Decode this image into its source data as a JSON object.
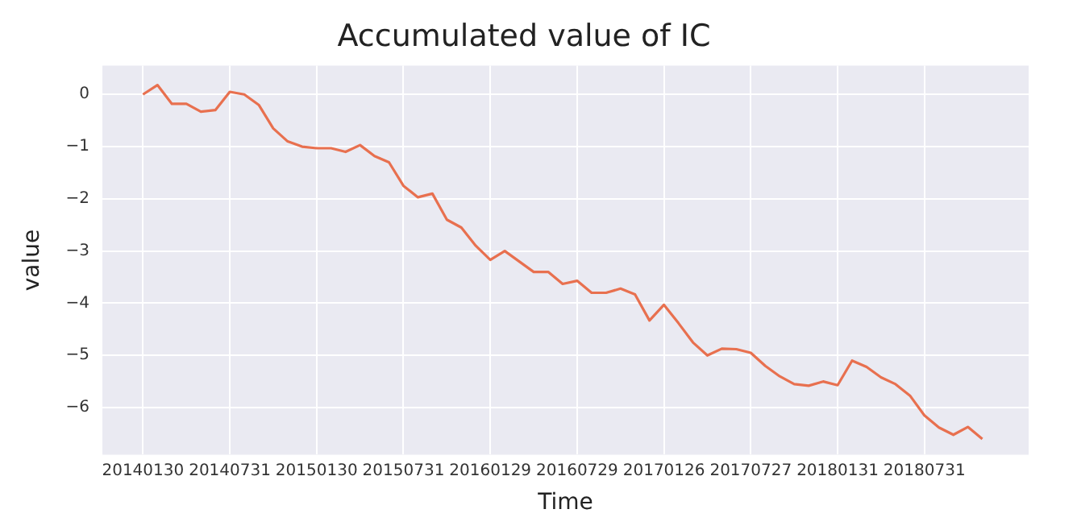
{
  "chart_data": {
    "type": "line",
    "title": "Accumulated value of IC",
    "xlabel": "Time",
    "ylabel": "value",
    "categories": [
      "20140130",
      null,
      null,
      null,
      null,
      null,
      "20140731",
      null,
      null,
      null,
      null,
      null,
      "20150130",
      null,
      null,
      null,
      null,
      null,
      "20150731",
      null,
      null,
      null,
      null,
      null,
      "20160129",
      null,
      null,
      null,
      null,
      null,
      "20160729",
      null,
      null,
      null,
      null,
      null,
      "20170126",
      null,
      null,
      null,
      null,
      null,
      "20170727",
      null,
      null,
      null,
      null,
      null,
      "20180131",
      null,
      null,
      null,
      null,
      null,
      "20180731",
      null,
      null,
      null,
      null
    ],
    "series": [
      {
        "color": "#e8704f",
        "values": [
          0,
          0.18,
          -0.18,
          -0.18,
          -0.33,
          -0.3,
          0.05,
          0,
          -0.2,
          -0.65,
          -0.9,
          -1.0,
          -1.03,
          -1.03,
          -1.1,
          -0.97,
          -1.18,
          -1.3,
          -1.75,
          -1.97,
          -1.9,
          -2.4,
          -2.55,
          -2.9,
          -3.17,
          -3.0,
          -3.2,
          -3.4,
          -3.4,
          -3.63,
          -3.57,
          -3.8,
          -3.8,
          -3.72,
          -3.83,
          -4.33,
          -4.03,
          -4.38,
          -4.75,
          -5.0,
          -4.87,
          -4.88,
          -4.95,
          -5.2,
          -5.4,
          -5.55,
          -5.58,
          -5.5,
          -5.57,
          -5.1,
          -5.22,
          -5.42,
          -5.55,
          -5.77,
          -6.15,
          -6.38,
          -6.52,
          -6.37,
          -6.6
        ]
      }
    ],
    "ylim": [
      -6.9,
      0.55
    ],
    "yticks": [
      -6,
      -5,
      -4,
      -3,
      -2,
      -1,
      0
    ],
    "grid": true,
    "legend": false,
    "marker": "none",
    "line_style": "solid"
  }
}
